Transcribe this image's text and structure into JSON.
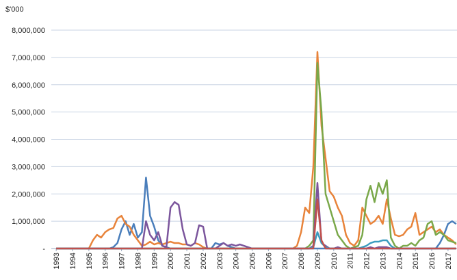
{
  "chart_data": {
    "type": "line",
    "y_unit": "$'000",
    "x": [
      1993,
      1993.25,
      1993.5,
      1993.75,
      1994,
      1994.25,
      1994.5,
      1994.75,
      1995,
      1995.25,
      1995.5,
      1995.75,
      1996,
      1996.25,
      1996.5,
      1996.75,
      1997,
      1997.25,
      1997.5,
      1997.75,
      1998,
      1998.25,
      1998.5,
      1998.75,
      1999,
      1999.25,
      1999.5,
      1999.75,
      2000,
      2000.25,
      2000.5,
      2000.75,
      2001,
      2001.25,
      2001.5,
      2001.75,
      2002,
      2002.25,
      2002.5,
      2002.75,
      2003,
      2003.25,
      2003.5,
      2003.75,
      2004,
      2004.25,
      2004.5,
      2004.75,
      2005,
      2005.25,
      2005.5,
      2005.75,
      2006,
      2006.25,
      2006.5,
      2006.75,
      2007,
      2007.25,
      2007.5,
      2007.75,
      2008,
      2008.25,
      2008.5,
      2008.75,
      2009,
      2009.25,
      2009.5,
      2009.75,
      2010,
      2010.25,
      2010.5,
      2010.75,
      2011,
      2011.25,
      2011.5,
      2011.75,
      2012,
      2012.25,
      2012.5,
      2012.75,
      2013,
      2013.25,
      2013.5,
      2013.75,
      2014,
      2014.25,
      2014.5,
      2014.75,
      2015,
      2015.25,
      2015.5,
      2015.75,
      2016,
      2016.25,
      2016.5,
      2016.75,
      2017,
      2017.25,
      2017.5
    ],
    "series": [
      {
        "color": "#4a7ebb",
        "values": [
          0,
          0,
          0,
          0,
          0,
          0,
          0,
          0,
          0,
          0,
          0,
          0,
          0,
          0,
          50000,
          200000,
          700000,
          1000000,
          500000,
          900000,
          400000,
          600000,
          2600000,
          1200000,
          800000,
          300000,
          100000,
          50000,
          0,
          0,
          0,
          0,
          0,
          0,
          0,
          0,
          0,
          0,
          0,
          200000,
          150000,
          200000,
          100000,
          50000,
          0,
          0,
          0,
          0,
          0,
          0,
          0,
          0,
          0,
          0,
          0,
          0,
          0,
          0,
          0,
          0,
          0,
          0,
          0,
          0,
          0,
          0,
          0,
          0,
          0,
          0,
          0,
          0,
          0,
          0,
          0,
          0,
          0,
          0,
          0,
          0,
          0,
          0,
          0,
          0,
          0,
          0,
          0,
          0,
          0,
          0,
          0,
          0,
          0,
          0,
          200000,
          500000,
          900000,
          1000000,
          900000
        ]
      },
      {
        "color": "#e8833a",
        "values": [
          0,
          0,
          0,
          0,
          0,
          0,
          0,
          0,
          0,
          300000,
          500000,
          400000,
          600000,
          700000,
          750000,
          1100000,
          1200000,
          900000,
          800000,
          500000,
          300000,
          100000,
          150000,
          250000,
          150000,
          200000,
          150000,
          200000,
          250000,
          200000,
          200000,
          150000,
          150000,
          100000,
          200000,
          150000,
          50000,
          0,
          0,
          0,
          0,
          0,
          0,
          0,
          0,
          0,
          0,
          0,
          0,
          0,
          0,
          0,
          0,
          0,
          0,
          0,
          0,
          0,
          0,
          100000,
          600000,
          1500000,
          1300000,
          3000000,
          7200000,
          4500000,
          3300000,
          2100000,
          1900000,
          1500000,
          1200000,
          500000,
          200000,
          100000,
          300000,
          1500000,
          1200000,
          900000,
          1000000,
          1200000,
          900000,
          1800000,
          1100000,
          500000,
          450000,
          500000,
          700000,
          800000,
          1300000,
          500000,
          600000,
          700000,
          800000,
          600000,
          700000,
          500000,
          400000,
          300000,
          150000
        ]
      },
      {
        "color": "#7aa84a",
        "values": [
          0,
          0,
          0,
          0,
          0,
          0,
          0,
          0,
          0,
          0,
          0,
          0,
          0,
          0,
          0,
          0,
          0,
          0,
          0,
          0,
          0,
          0,
          0,
          0,
          0,
          0,
          0,
          0,
          0,
          0,
          0,
          0,
          0,
          0,
          0,
          0,
          0,
          0,
          0,
          0,
          0,
          0,
          0,
          0,
          0,
          0,
          0,
          0,
          0,
          0,
          0,
          0,
          0,
          0,
          0,
          0,
          0,
          0,
          0,
          0,
          0,
          0,
          100000,
          300000,
          6800000,
          5000000,
          2000000,
          1500000,
          1000000,
          500000,
          300000,
          100000,
          0,
          50000,
          100000,
          500000,
          1800000,
          2300000,
          1700000,
          2400000,
          2000000,
          2500000,
          400000,
          100000,
          0,
          100000,
          100000,
          200000,
          100000,
          300000,
          400000,
          900000,
          1000000,
          500000,
          600000,
          500000,
          300000,
          250000,
          200000
        ]
      },
      {
        "color": "#7b559c",
        "values": [
          0,
          0,
          0,
          0,
          0,
          0,
          0,
          0,
          0,
          0,
          0,
          0,
          0,
          0,
          0,
          0,
          0,
          0,
          0,
          0,
          0,
          0,
          1000000,
          500000,
          300000,
          600000,
          100000,
          50000,
          1500000,
          1700000,
          1600000,
          700000,
          150000,
          100000,
          200000,
          850000,
          800000,
          0,
          0,
          0,
          100000,
          200000,
          100000,
          150000,
          100000,
          150000,
          100000,
          50000,
          0,
          0,
          0,
          0,
          0,
          0,
          0,
          0,
          0,
          0,
          0,
          0,
          0,
          0,
          0,
          100000,
          2400000,
          200000,
          100000,
          0,
          0,
          50000,
          0,
          0,
          0,
          0,
          0,
          0,
          0,
          50000,
          0,
          50000,
          50000,
          50000,
          0,
          0,
          0,
          0,
          0,
          0,
          0,
          0,
          0,
          0,
          0,
          0,
          0,
          0,
          0,
          0,
          0
        ]
      },
      {
        "color": "#3a9cbf",
        "values": [
          0,
          0,
          0,
          0,
          0,
          0,
          0,
          0,
          0,
          0,
          0,
          0,
          0,
          0,
          0,
          0,
          0,
          0,
          0,
          0,
          0,
          0,
          0,
          0,
          0,
          0,
          0,
          0,
          0,
          0,
          0,
          0,
          0,
          0,
          0,
          0,
          0,
          0,
          0,
          0,
          0,
          0,
          0,
          0,
          0,
          0,
          0,
          0,
          0,
          0,
          0,
          0,
          0,
          0,
          0,
          0,
          0,
          0,
          0,
          0,
          0,
          0,
          0,
          50000,
          600000,
          200000,
          50000,
          0,
          0,
          0,
          0,
          0,
          0,
          0,
          0,
          50000,
          100000,
          200000,
          250000,
          250000,
          300000,
          300000,
          100000,
          0,
          0,
          0,
          0,
          0,
          0,
          0,
          0,
          0,
          0,
          0,
          0,
          0,
          0,
          0,
          0
        ]
      },
      {
        "color": "#c0504d",
        "values": [
          0,
          0,
          0,
          0,
          0,
          0,
          0,
          0,
          0,
          0,
          0,
          0,
          0,
          0,
          0,
          0,
          0,
          0,
          0,
          0,
          0,
          0,
          0,
          0,
          0,
          0,
          0,
          0,
          0,
          0,
          0,
          0,
          0,
          0,
          0,
          0,
          0,
          0,
          0,
          0,
          0,
          0,
          0,
          0,
          0,
          0,
          0,
          0,
          0,
          0,
          0,
          0,
          0,
          0,
          0,
          0,
          0,
          0,
          0,
          0,
          0,
          0,
          0,
          0,
          1800000,
          300000,
          0,
          0,
          0,
          0,
          0,
          0,
          0,
          0,
          0,
          0,
          0,
          0,
          0,
          0,
          0,
          0,
          0,
          0,
          0,
          0,
          0,
          0,
          0,
          0,
          0,
          0,
          0,
          0,
          0,
          0,
          0,
          0,
          0
        ]
      }
    ],
    "xlim": [
      1992.7,
      2017.55
    ],
    "xticks": [
      1993,
      1994,
      1995,
      1996,
      1997,
      1998,
      1999,
      2000,
      2001,
      2002,
      2003,
      2004,
      2005,
      2006,
      2007,
      2008,
      2009,
      2010,
      2011,
      2012,
      2013,
      2014,
      2015,
      2016,
      2017
    ],
    "ylim": [
      0,
      8000000
    ],
    "yticks": [
      {
        "value": 0,
        "label": "-"
      },
      {
        "value": 1000000,
        "label": "1,000,000"
      },
      {
        "value": 2000000,
        "label": "2,000,000"
      },
      {
        "value": 3000000,
        "label": "3,000,000"
      },
      {
        "value": 4000000,
        "label": "4,000,000"
      },
      {
        "value": 5000000,
        "label": "5,000,000"
      },
      {
        "value": 6000000,
        "label": "6,000,000"
      },
      {
        "value": 7000000,
        "label": "7,000,000"
      },
      {
        "value": 8000000,
        "label": "8,000,000"
      }
    ],
    "grid": true
  }
}
